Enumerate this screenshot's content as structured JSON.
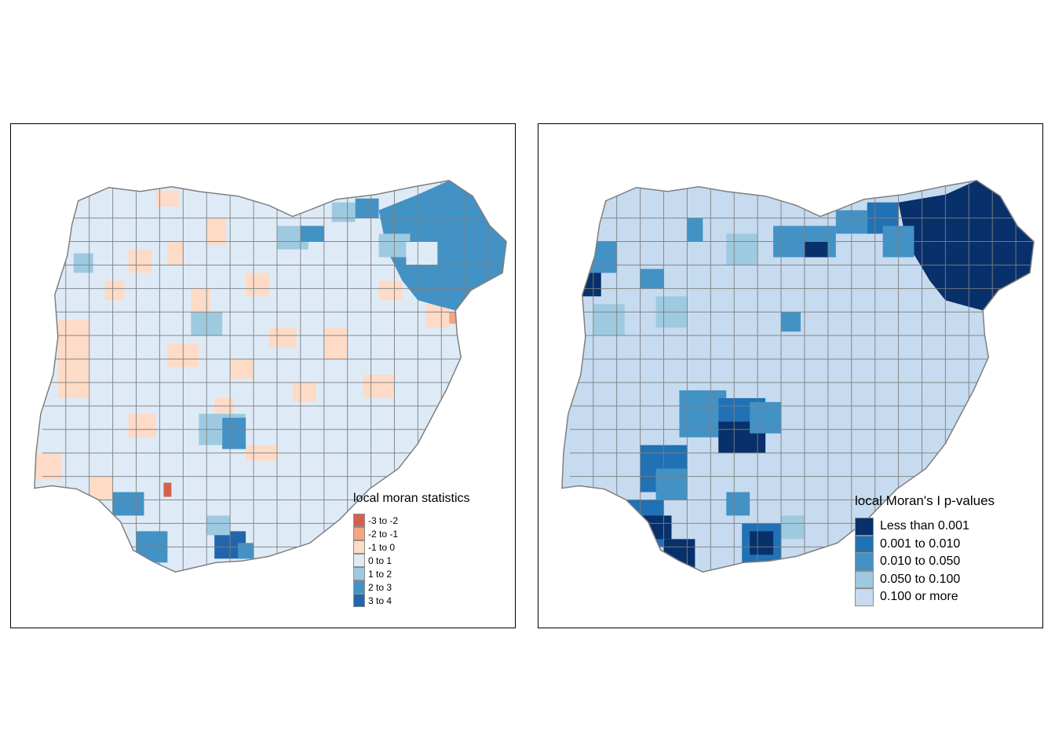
{
  "colors": {
    "border": "#7f7f7f",
    "left_palette": [
      "#d6604d",
      "#f4a582",
      "#fddbc7",
      "#deebf7",
      "#9ecae1",
      "#4292c6",
      "#2166ac"
    ],
    "right_palette": [
      "#08306b",
      "#2171b5",
      "#4292c6",
      "#9ecae1",
      "#c6dbef"
    ]
  },
  "maps": [
    {
      "legend": {
        "title": "local moran statistics",
        "items": [
          {
            "label": "-3 to -2",
            "color": "#d6604d"
          },
          {
            "label": "-2 to -1",
            "color": "#f4a582"
          },
          {
            "label": "-1 to 0",
            "color": "#fddbc7"
          },
          {
            "label": "0 to 1",
            "color": "#deebf7"
          },
          {
            "label": "1 to 2",
            "color": "#9ecae1"
          },
          {
            "label": "2 to 3",
            "color": "#4292c6"
          },
          {
            "label": "3 to 4",
            "color": "#2166ac"
          }
        ]
      }
    },
    {
      "legend": {
        "title": "local Moran's I p-values",
        "items": [
          {
            "label": "Less than 0.001",
            "color": "#08306b"
          },
          {
            "label": "0.001 to 0.010",
            "color": "#2171b5"
          },
          {
            "label": "0.010 to 0.050",
            "color": "#4292c6"
          },
          {
            "label": "0.050 to 0.100",
            "color": "#9ecae1"
          },
          {
            "label": "0.100 or more",
            "color": "#c6dbef"
          }
        ]
      }
    }
  ]
}
